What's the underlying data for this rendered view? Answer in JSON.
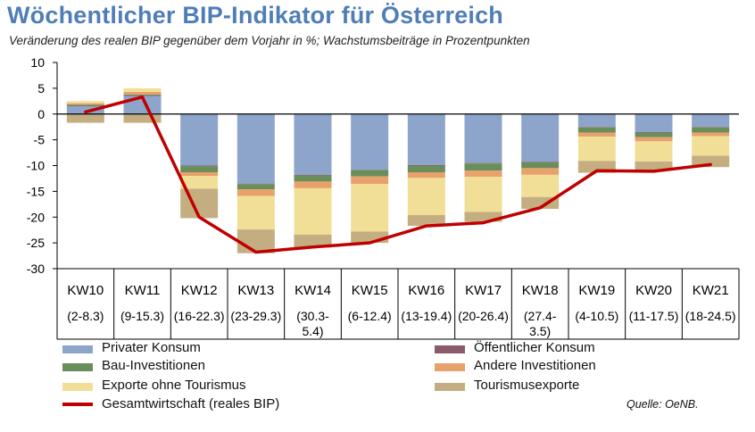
{
  "title": "Wöchentlicher BIP-Indikator für Österreich",
  "subtitle": "Veränderung des realen BIP gegenüber dem Vorjahr in %; Wachstumsbeiträge in Prozentpunkten",
  "source": "Quelle: OeNB.",
  "chart_data": {
    "type": "bar",
    "stacked": true,
    "ylim": [
      -30,
      10
    ],
    "yticks": [
      10,
      5,
      0,
      -5,
      -10,
      -15,
      -20,
      -25,
      -30
    ],
    "grid": false,
    "legend_position": "bottom",
    "categories": [
      "KW10",
      "KW11",
      "KW12",
      "KW13",
      "KW14",
      "KW15",
      "KW16",
      "KW17",
      "KW18",
      "KW19",
      "KW20",
      "KW21"
    ],
    "category_dates": [
      "(2-8.3)",
      "(9-15.3)",
      "(16-22.3)",
      "(23-29.3)",
      "(30.3-\n5.4)",
      "(6-12.4)",
      "(13-19.4)",
      "(20-26.4)",
      "(27.4-\n3.5)",
      "(4-10.5)",
      "(11-17.5)",
      "(18-24.5)"
    ],
    "series": [
      {
        "name": "Privater Konsum",
        "color": "#8ea5cb",
        "values": [
          1.5,
          3.5,
          -10.0,
          -13.5,
          -11.8,
          -10.8,
          -9.9,
          -9.5,
          -9.3,
          -2.5,
          -3.5,
          -2.5
        ]
      },
      {
        "name": "Öffentlicher Konsum",
        "color": "#8b5a6b",
        "values": [
          0.1,
          0.1,
          -0.1,
          -0.1,
          -0.1,
          -0.1,
          -0.1,
          -0.1,
          -0.1,
          -0.1,
          -0.1,
          -0.1
        ]
      },
      {
        "name": "Bau-Investitionen",
        "color": "#6a8e5a",
        "values": [
          0.2,
          0.2,
          -1.2,
          -1.0,
          -1.2,
          -1.2,
          -1.3,
          -1.4,
          -1.1,
          -1.0,
          -0.9,
          -1.0
        ]
      },
      {
        "name": "Andere Investitionen",
        "color": "#e9a16b",
        "values": [
          0.3,
          0.5,
          -0.7,
          -1.3,
          -1.3,
          -1.5,
          -1.1,
          -1.2,
          -1.3,
          -0.8,
          -0.8,
          -0.7
        ]
      },
      {
        "name": "Exporte ohne Tourismus",
        "color": "#f1df98",
        "values": [
          0.4,
          0.7,
          -2.5,
          -6.5,
          -9.0,
          -9.2,
          -7.2,
          -6.8,
          -4.3,
          -4.7,
          -3.9,
          -3.8
        ]
      },
      {
        "name": "Tourismusexporte",
        "color": "#c4ae81",
        "values": [
          -1.7,
          -1.7,
          -5.7,
          -4.6,
          -2.5,
          -2.2,
          -2.1,
          -1.9,
          -2.3,
          -2.3,
          -1.7,
          -2.2
        ]
      }
    ],
    "line": {
      "name": "Gesamtwirtschaft (reales BIP)",
      "color": "#c00000",
      "values": [
        0.4,
        3.3,
        -20.0,
        -26.8,
        -25.8,
        -25.0,
        -21.7,
        -21.1,
        -18.2,
        -11.0,
        -11.1,
        -9.8
      ]
    }
  }
}
